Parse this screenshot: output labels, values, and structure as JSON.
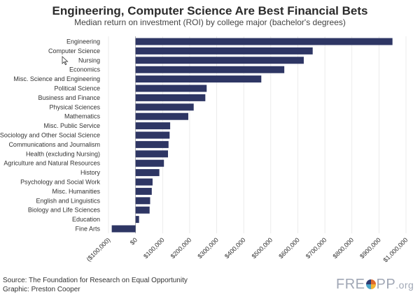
{
  "title": "Engineering, Computer Science Are Best Financial Bets",
  "subtitle": "Median return on investment (ROI) by college major (bachelor's degrees)",
  "footer": {
    "source": "Source: The Foundation for Research on Equal Opportunity",
    "graphic": "Graphic: Preston Cooper",
    "logo_before": "FRE",
    "logo_after": "PP",
    "logo_suffix": ".org"
  },
  "colors": {
    "bar": "#2e3664",
    "grid": "#e3e3e3",
    "axis": "#999999"
  },
  "chart_data": {
    "type": "bar",
    "orientation": "horizontal",
    "title": "Engineering, Computer Science Are Best Financial Bets",
    "subtitle": "Median return on investment (ROI) by college major (bachelor's degrees)",
    "categories": [
      "Engineering",
      "Computer Science",
      "Nursing",
      "Economics",
      "Misc. Science and Engineering",
      "Political Science",
      "Business and Finance",
      "Physical Sciences",
      "Mathematics",
      "Misc. Public Service",
      "Sociology and Other Social Science",
      "Communications and Journalism",
      "Health (excluding Nursing)",
      "Agriculture and Natural Resources",
      "History",
      "Psychology and Social Work",
      "Misc. Humanities",
      "English and Linguistics",
      "Biology and Life Sciences",
      "Education",
      "Fine Arts"
    ],
    "values": [
      950000,
      655000,
      622000,
      550000,
      465000,
      263000,
      258000,
      215000,
      195000,
      128000,
      126000,
      122000,
      120000,
      105000,
      88000,
      63000,
      60000,
      54000,
      52000,
      13000,
      -88000
    ],
    "xlim": [
      -100000,
      1000000
    ],
    "xticks": [
      -100000,
      0,
      100000,
      200000,
      300000,
      400000,
      500000,
      600000,
      700000,
      800000,
      900000,
      1000000
    ],
    "xtick_labels": [
      "($100,000)",
      "$0",
      "$100,000",
      "$200,000",
      "$300,000",
      "$400,000",
      "$500,000",
      "$600,000",
      "$700,000",
      "$800,000",
      "$900,000",
      "$1,000,000"
    ],
    "grid": true,
    "legend": "none"
  }
}
